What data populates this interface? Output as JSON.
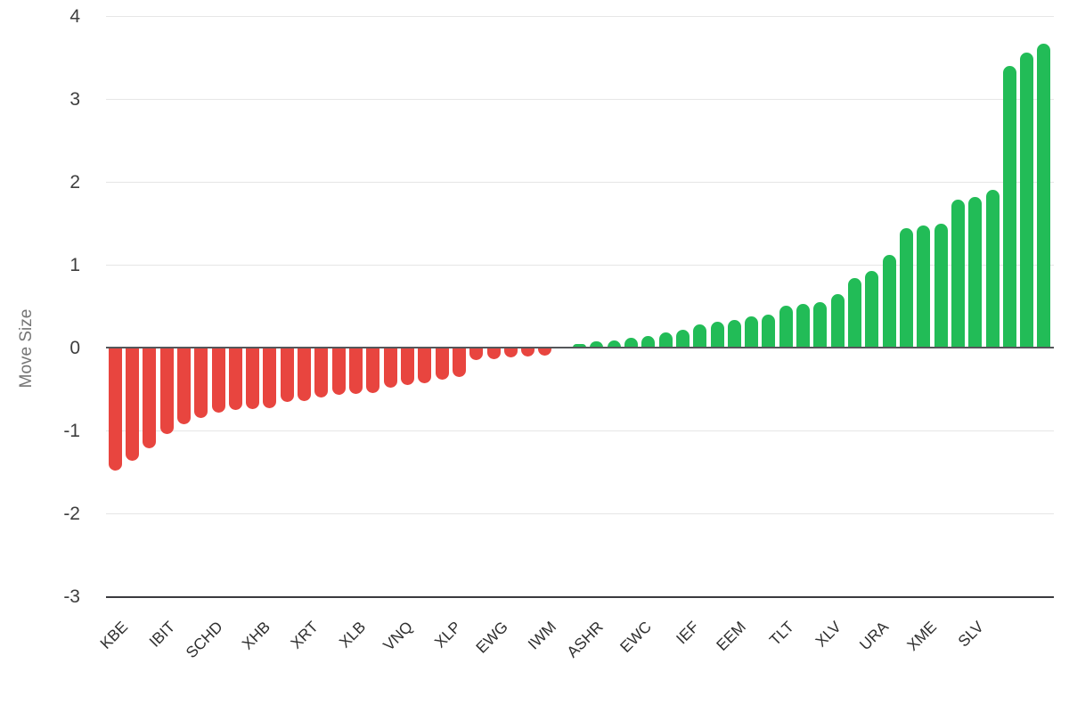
{
  "chart_data": {
    "type": "bar",
    "title": "",
    "xlabel": "",
    "ylabel": "Move Size",
    "ylim": [
      -3,
      4
    ],
    "yticks": [
      4,
      3,
      2,
      1,
      0,
      -1,
      -2,
      -3
    ],
    "grid": "horizontal-light",
    "legend": "none",
    "bar_count": 55,
    "values": [
      -1.48,
      -1.37,
      -1.22,
      -1.04,
      -0.92,
      -0.85,
      -0.79,
      -0.755,
      -0.745,
      -0.735,
      -0.66,
      -0.645,
      -0.6,
      -0.575,
      -0.56,
      -0.545,
      -0.48,
      -0.455,
      -0.43,
      -0.385,
      -0.36,
      -0.15,
      -0.135,
      -0.12,
      -0.11,
      -0.095,
      0.0,
      0.04,
      0.07,
      0.09,
      0.12,
      0.14,
      0.18,
      0.21,
      0.28,
      0.31,
      0.33,
      0.38,
      0.4,
      0.51,
      0.53,
      0.55,
      0.65,
      0.84,
      0.93,
      1.12,
      1.44,
      1.47,
      1.5,
      1.79,
      1.82,
      1.9,
      3.4,
      3.56,
      3.67
    ],
    "tick_labels": [
      "KBE",
      "IBIT",
      "SCHD",
      "XHB",
      "XRT",
      "XLB",
      "VNQ",
      "XLP",
      "EWG",
      "IWM",
      "ASHR",
      "EWC",
      "IEF",
      "EEM",
      "TLT",
      "XLV",
      "URA",
      "XME",
      "SLV"
    ],
    "tick_label_every_nth_bar": 3,
    "colors": {
      "positive": "#22bc57",
      "negative": "#e8453f",
      "gridline": "#e6e6e6",
      "zero_line": "#55565a",
      "axis_line": "#3a3a3e",
      "ytick_text": "#3e3e3e",
      "xtick_text": "#2f2f2f",
      "ylabel_text": "#757575"
    }
  }
}
